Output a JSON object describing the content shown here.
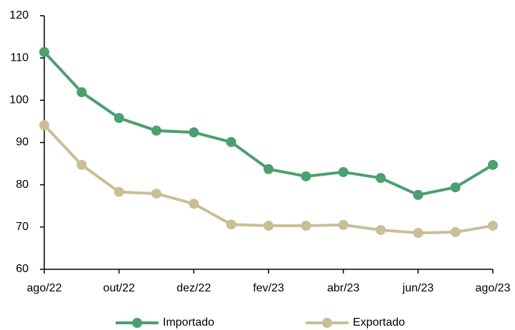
{
  "chart_data": {
    "type": "line",
    "categories": [
      "ago/22",
      null,
      "out/22",
      null,
      "dez/22",
      null,
      "fev/23",
      null,
      "abr/23",
      null,
      "jun/23",
      null,
      "ago/23"
    ],
    "series": [
      {
        "name": "Importado",
        "color": "#4c9f70",
        "values": [
          111.4,
          101.9,
          95.8,
          92.8,
          92.4,
          90.1,
          83.7,
          82.0,
          83.0,
          81.6,
          77.6,
          79.4,
          84.7
        ]
      },
      {
        "name": "Exportado",
        "color": "#c8bf96",
        "values": [
          94.1,
          84.7,
          78.3,
          77.9,
          75.5,
          70.6,
          70.3,
          70.3,
          70.5,
          69.3,
          68.6,
          68.8,
          70.3
        ]
      }
    ],
    "ylim": [
      60,
      120
    ],
    "yticks": [
      60,
      70,
      80,
      90,
      100,
      110,
      120
    ],
    "grid": false,
    "legend": "bottom"
  }
}
